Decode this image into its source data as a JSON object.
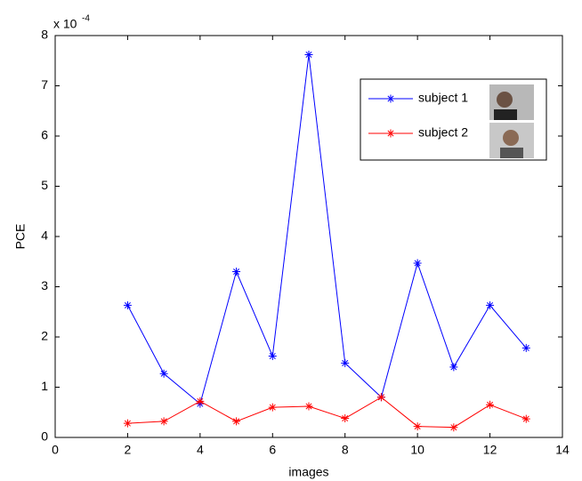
{
  "chart_data": {
    "type": "line",
    "x_label": "images",
    "y_label": "PCE",
    "y_multiplier_base": "x 10",
    "y_multiplier_exponent": "-4",
    "x": [
      2,
      3,
      4,
      5,
      6,
      7,
      8,
      9,
      10,
      11,
      12,
      13
    ],
    "series": [
      {
        "name": "subject 1",
        "color": "#0000ff",
        "values": [
          2.63,
          1.27,
          0.67,
          3.3,
          1.62,
          7.62,
          1.48,
          0.8,
          3.47,
          1.4,
          2.63,
          1.78
        ]
      },
      {
        "name": "subject 2",
        "color": "#ff0000",
        "values": [
          0.28,
          0.32,
          0.72,
          0.32,
          0.6,
          0.62,
          0.38,
          0.8,
          0.22,
          0.2,
          0.65,
          0.37
        ]
      }
    ],
    "xlim": [
      0,
      14
    ],
    "xticks": [
      0,
      2,
      4,
      6,
      8,
      10,
      12,
      14
    ],
    "ylim": [
      0,
      8
    ],
    "yticks": [
      0,
      1,
      2,
      3,
      4,
      5,
      6,
      7,
      8
    ],
    "grid": false,
    "marker": "asterisk",
    "legend_position": "upper right"
  }
}
